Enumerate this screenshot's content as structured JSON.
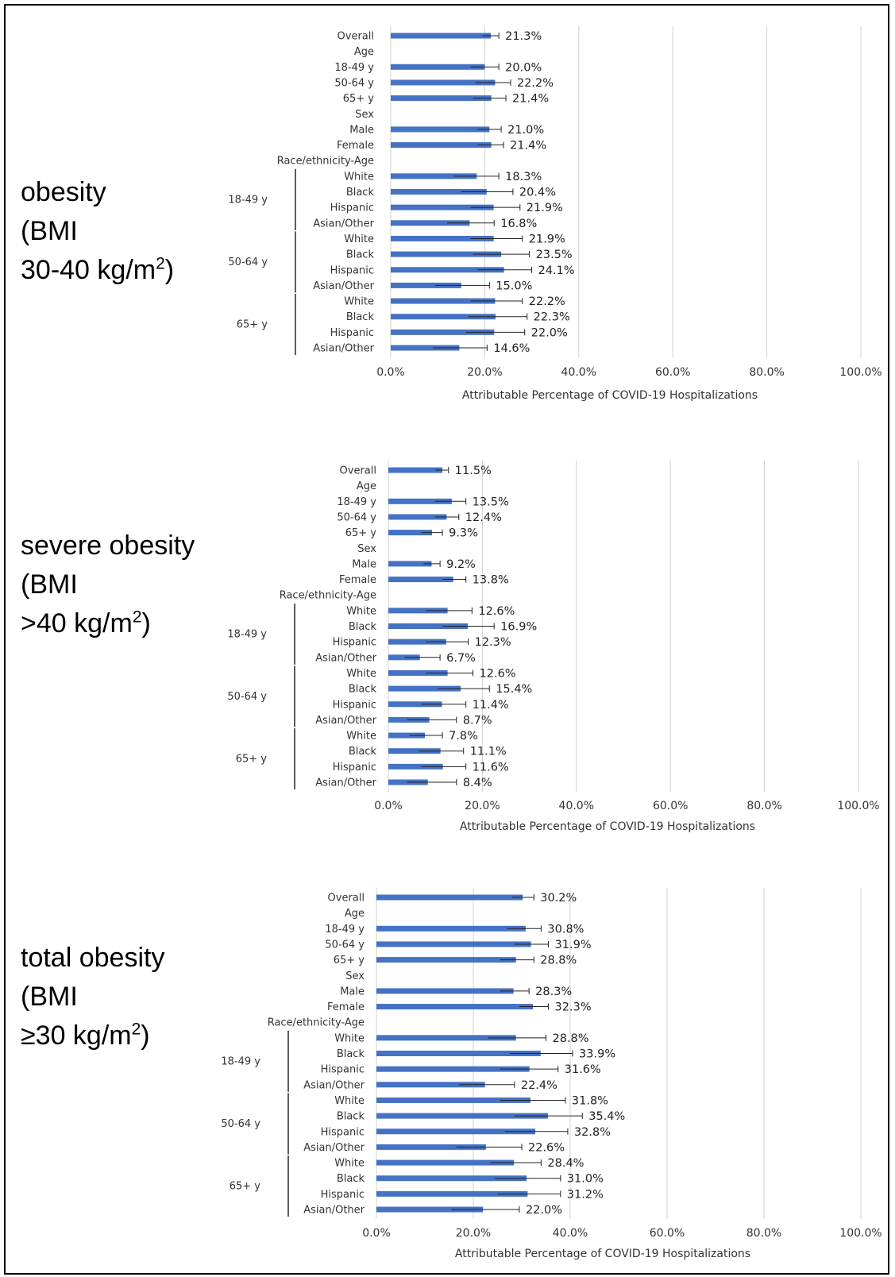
{
  "colors": {
    "bar": "#4472C4",
    "error_bar": "#222222",
    "grid": "#D0D0D0",
    "frame": "#000000"
  },
  "panels": [
    {
      "title_line1": "obesity",
      "title_line2": "(BMI",
      "title_line3": "30-40 kg/m",
      "title_sup": "2",
      "title_tail": ")"
    },
    {
      "title_line1": "severe obesity",
      "title_line2": "(BMI",
      "title_line3": ">40 kg/m",
      "title_sup": "2",
      "title_tail": ")"
    },
    {
      "title_line1": "total obesity",
      "title_line2": "(BMI",
      "title_line3": "≥30 kg/m",
      "title_sup": "2",
      "title_tail": ")"
    }
  ],
  "chart_data": [
    {
      "type": "bar",
      "orientation": "horizontal",
      "title": "obesity (BMI 30-40 kg/m2)",
      "xlabel": "Attributable Percentage of COVID-19 Hospitalizations",
      "xlim": [
        0,
        100
      ],
      "xticks": [
        "0.0%",
        "20.0%",
        "40.0%",
        "60.0%",
        "80.0%",
        "100.0%"
      ],
      "grid": true,
      "categories": [
        "Overall",
        "Age",
        "18-49 y",
        "50-64 y",
        "65+ y",
        "Sex",
        "Male",
        "Female",
        "Race/ethnicity-Age",
        "White",
        "Black",
        "Hispanic",
        "Asian/Other",
        "White",
        "Black",
        "Hispanic",
        "Asian/Other",
        "White",
        "Black",
        "Hispanic",
        "Asian/Other"
      ],
      "values": [
        21.3,
        null,
        20.0,
        22.2,
        21.4,
        null,
        21.0,
        21.4,
        null,
        18.3,
        20.4,
        21.9,
        16.8,
        21.9,
        23.5,
        24.1,
        15.0,
        22.2,
        22.3,
        22.0,
        14.6
      ],
      "value_labels": [
        "21.3%",
        "",
        "20.0%",
        "22.2%",
        "21.4%",
        "",
        "21.0%",
        "21.4%",
        "",
        "18.3%",
        "20.4%",
        "21.9%",
        "16.8%",
        "21.9%",
        "23.5%",
        "24.1%",
        "15.0%",
        "22.2%",
        "22.3%",
        "22.0%",
        "14.6%"
      ],
      "ci_low": [
        19.5,
        null,
        17.0,
        18.0,
        17.5,
        null,
        18.5,
        18.5,
        null,
        13.5,
        15.0,
        17.0,
        12.0,
        17.0,
        17.5,
        18.5,
        9.5,
        17.0,
        16.5,
        16.0,
        9.0
      ],
      "ci_high": [
        23.0,
        null,
        23.0,
        25.5,
        24.5,
        null,
        23.5,
        24.0,
        null,
        23.0,
        26.0,
        27.5,
        22.0,
        28.0,
        29.5,
        30.0,
        21.0,
        28.0,
        29.0,
        28.5,
        20.5
      ],
      "groups": [
        {
          "label": "18-49 y",
          "start": 9,
          "end": 12
        },
        {
          "label": "50-64 y",
          "start": 13,
          "end": 16
        },
        {
          "label": "65+ y",
          "start": 17,
          "end": 20
        }
      ]
    },
    {
      "type": "bar",
      "orientation": "horizontal",
      "title": "severe obesity (BMI >40 kg/m2)",
      "xlabel": "Attributable Percentage of COVID-19 Hospitalizations",
      "xlim": [
        0,
        100
      ],
      "xticks": [
        "0.0%",
        "20.0%",
        "40.0%",
        "60.0%",
        "80.0%",
        "100.0%"
      ],
      "grid": true,
      "categories": [
        "Overall",
        "Age",
        "18-49 y",
        "50-64 y",
        "65+ y",
        "Sex",
        "Male",
        "Female",
        "Race/ethnicity-Age",
        "White",
        "Black",
        "Hispanic",
        "Asian/Other",
        "White",
        "Black",
        "Hispanic",
        "Asian/Other",
        "White",
        "Black",
        "Hispanic",
        "Asian/Other"
      ],
      "values": [
        11.5,
        null,
        13.5,
        12.4,
        9.3,
        null,
        9.2,
        13.8,
        null,
        12.6,
        16.9,
        12.3,
        6.7,
        12.6,
        15.4,
        11.4,
        8.7,
        7.8,
        11.1,
        11.6,
        8.4
      ],
      "value_labels": [
        "11.5%",
        "",
        "13.5%",
        "12.4%",
        "9.3%",
        "",
        "9.2%",
        "13.8%",
        "",
        "12.6%",
        "16.9%",
        "12.3%",
        "6.7%",
        "12.6%",
        "15.4%",
        "11.4%",
        "8.7%",
        "7.8%",
        "11.1%",
        "11.6%",
        "8.4%"
      ],
      "ci_low": [
        10.0,
        null,
        10.0,
        10.0,
        7.0,
        null,
        7.5,
        11.5,
        null,
        8.0,
        11.5,
        8.0,
        3.5,
        8.0,
        10.5,
        7.0,
        4.0,
        4.5,
        6.5,
        7.0,
        4.0
      ],
      "ci_high": [
        12.8,
        null,
        16.5,
        15.0,
        11.5,
        null,
        11.0,
        16.5,
        null,
        17.8,
        22.5,
        17.0,
        11.0,
        18.0,
        21.5,
        16.5,
        14.5,
        11.5,
        16.0,
        16.5,
        14.5
      ],
      "groups": [
        {
          "label": "18-49 y",
          "start": 9,
          "end": 12
        },
        {
          "label": "50-64 y",
          "start": 13,
          "end": 16
        },
        {
          "label": "65+ y",
          "start": 17,
          "end": 20
        }
      ]
    },
    {
      "type": "bar",
      "orientation": "horizontal",
      "title": "total obesity (BMI ≥30 kg/m2)",
      "xlabel": "Attributable Percentage of COVID-19 Hospitalizations",
      "xlim": [
        0,
        100
      ],
      "xticks": [
        "0.0%",
        "20.0%",
        "40.0%",
        "60.0%",
        "80.0%",
        "100.0%"
      ],
      "grid": true,
      "categories": [
        "Overall",
        "Age",
        "18-49 y",
        "50-64 y",
        "65+ y",
        "Sex",
        "Male",
        "Female",
        "Race/ethnicity-Age",
        "White",
        "Black",
        "Hispanic",
        "Asian/Other",
        "White",
        "Black",
        "Hispanic",
        "Asian/Other",
        "White",
        "Black",
        "Hispanic",
        "Asian/Other"
      ],
      "values": [
        30.2,
        null,
        30.8,
        31.9,
        28.8,
        null,
        28.3,
        32.3,
        null,
        28.8,
        33.9,
        31.6,
        22.4,
        31.8,
        35.4,
        32.8,
        22.6,
        28.4,
        31.0,
        31.2,
        22.0
      ],
      "value_labels": [
        "30.2%",
        "",
        "30.8%",
        "31.9%",
        "28.8%",
        "",
        "28.3%",
        "32.3%",
        "",
        "28.8%",
        "33.9%",
        "31.6%",
        "22.4%",
        "31.8%",
        "35.4%",
        "32.8%",
        "22.6%",
        "28.4%",
        "31.0%",
        "31.2%",
        "22.0%"
      ],
      "ci_low": [
        28.0,
        null,
        27.0,
        28.5,
        25.5,
        null,
        25.5,
        29.5,
        null,
        23.0,
        27.5,
        25.5,
        17.0,
        25.5,
        28.5,
        26.5,
        16.5,
        23.5,
        24.5,
        25.0,
        15.5
      ],
      "ci_high": [
        32.5,
        null,
        34.0,
        35.5,
        32.5,
        null,
        31.5,
        35.5,
        null,
        35.0,
        40.5,
        37.5,
        28.5,
        39.0,
        42.5,
        39.5,
        30.0,
        34.0,
        38.0,
        38.0,
        29.5
      ],
      "groups": [
        {
          "label": "18-49 y",
          "start": 9,
          "end": 12
        },
        {
          "label": "50-64 y",
          "start": 13,
          "end": 16
        },
        {
          "label": "65+ y",
          "start": 17,
          "end": 20
        }
      ]
    }
  ]
}
